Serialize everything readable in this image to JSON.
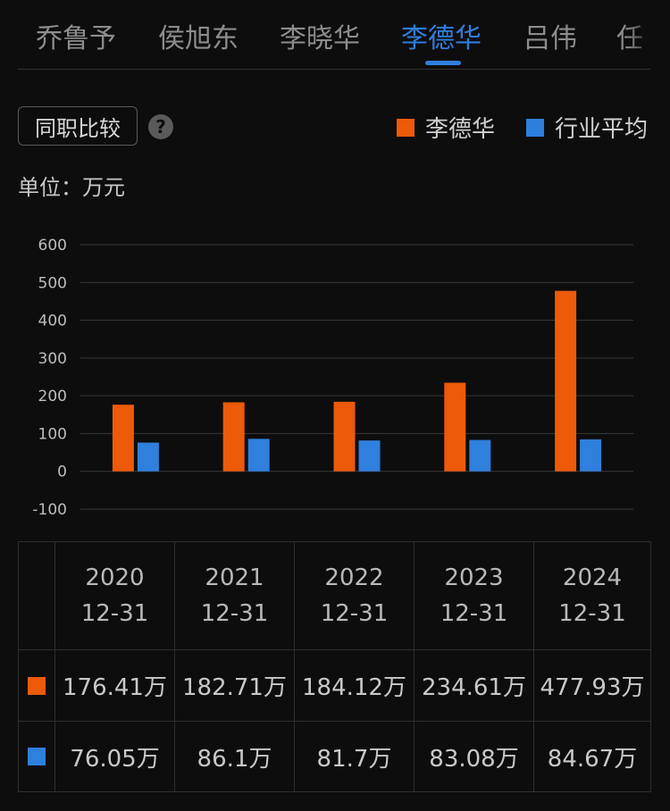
{
  "tabs": [
    {
      "label": "乔鲁予"
    },
    {
      "label": "侯旭东"
    },
    {
      "label": "李晓华"
    },
    {
      "label": "李德华"
    },
    {
      "label": "吕伟"
    },
    {
      "label": "任"
    }
  ],
  "active_tab": "李德华",
  "compare_button": "同职比较",
  "help_icon": "?",
  "unit_label": "单位：万元",
  "colors": {
    "person": "#ec5a0a",
    "industry": "#2f7fdd",
    "active_tab": "#2f7fdd"
  },
  "chart_data": {
    "type": "bar",
    "categories": [
      "2020",
      "2021",
      "2022",
      "2023",
      "2024"
    ],
    "series": [
      {
        "name": "李德华",
        "values": [
          176.41,
          182.71,
          184.12,
          234.61,
          477.93
        ]
      },
      {
        "name": "行业平均",
        "values": [
          76.05,
          86.1,
          81.7,
          83.08,
          84.67
        ]
      }
    ],
    "ylim": [
      -100,
      600
    ],
    "yticks": [
      "600",
      "500",
      "400",
      "300",
      "200",
      "100",
      "0",
      "-100"
    ],
    "grid": true,
    "legend": "top-right"
  },
  "table": {
    "dates": [
      {
        "year": "2020",
        "md": "12-31"
      },
      {
        "year": "2021",
        "md": "12-31"
      },
      {
        "year": "2022",
        "md": "12-31"
      },
      {
        "year": "2023",
        "md": "12-31"
      },
      {
        "year": "2024",
        "md": "12-31"
      }
    ],
    "rows": [
      {
        "series": "李德华",
        "cells": [
          "176.41万",
          "182.71万",
          "184.12万",
          "234.61万",
          "477.93万"
        ]
      },
      {
        "series": "行业平均",
        "cells": [
          "76.05万",
          "86.1万",
          "81.7万",
          "83.08万",
          "84.67万"
        ]
      }
    ]
  }
}
